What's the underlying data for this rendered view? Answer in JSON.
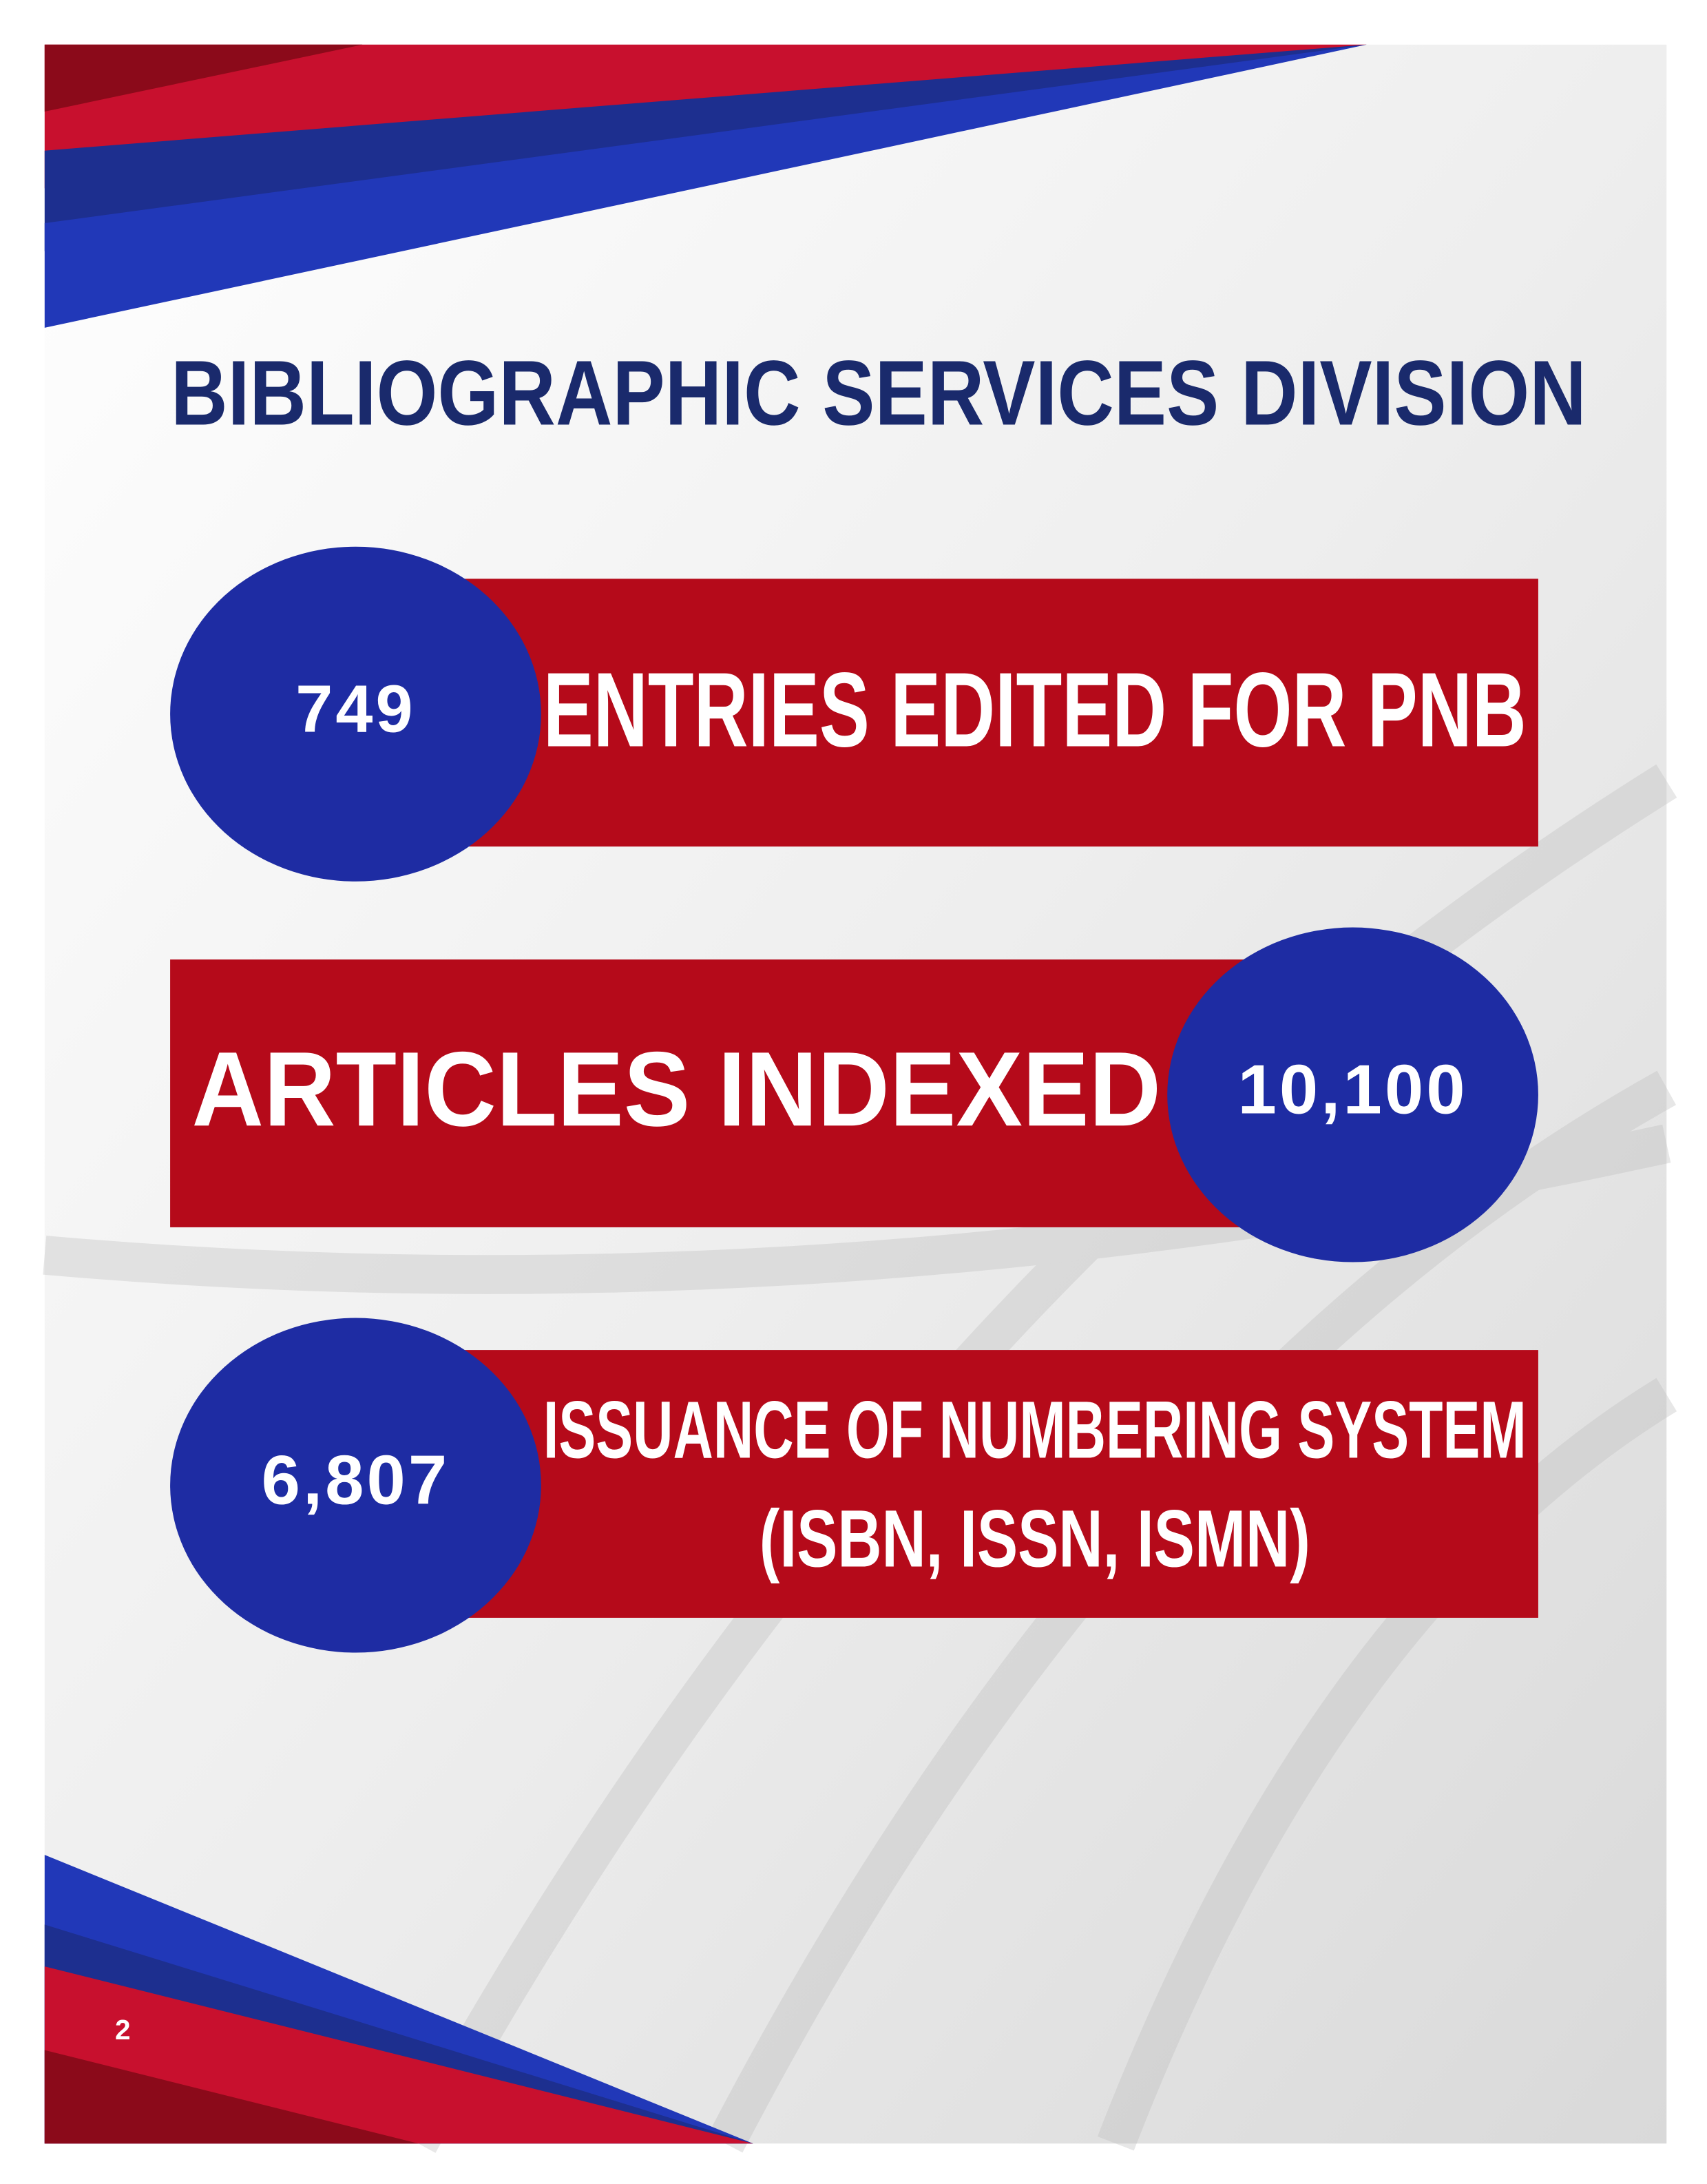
{
  "title": "BIBLIOGRAPHIC SERVICES DIVISION",
  "stats": [
    {
      "number": "749",
      "label_lines": [
        "ENTRIES EDITED FOR PNB"
      ]
    },
    {
      "number": "10,100",
      "label_lines": [
        "ARTICLES INDEXED"
      ]
    },
    {
      "number": "6,807",
      "label_lines": [
        "ISSUANCE OF NUMBERING SYSTEM",
        "(ISBN, ISSN, ISMN)"
      ]
    }
  ],
  "page_number": "2"
}
